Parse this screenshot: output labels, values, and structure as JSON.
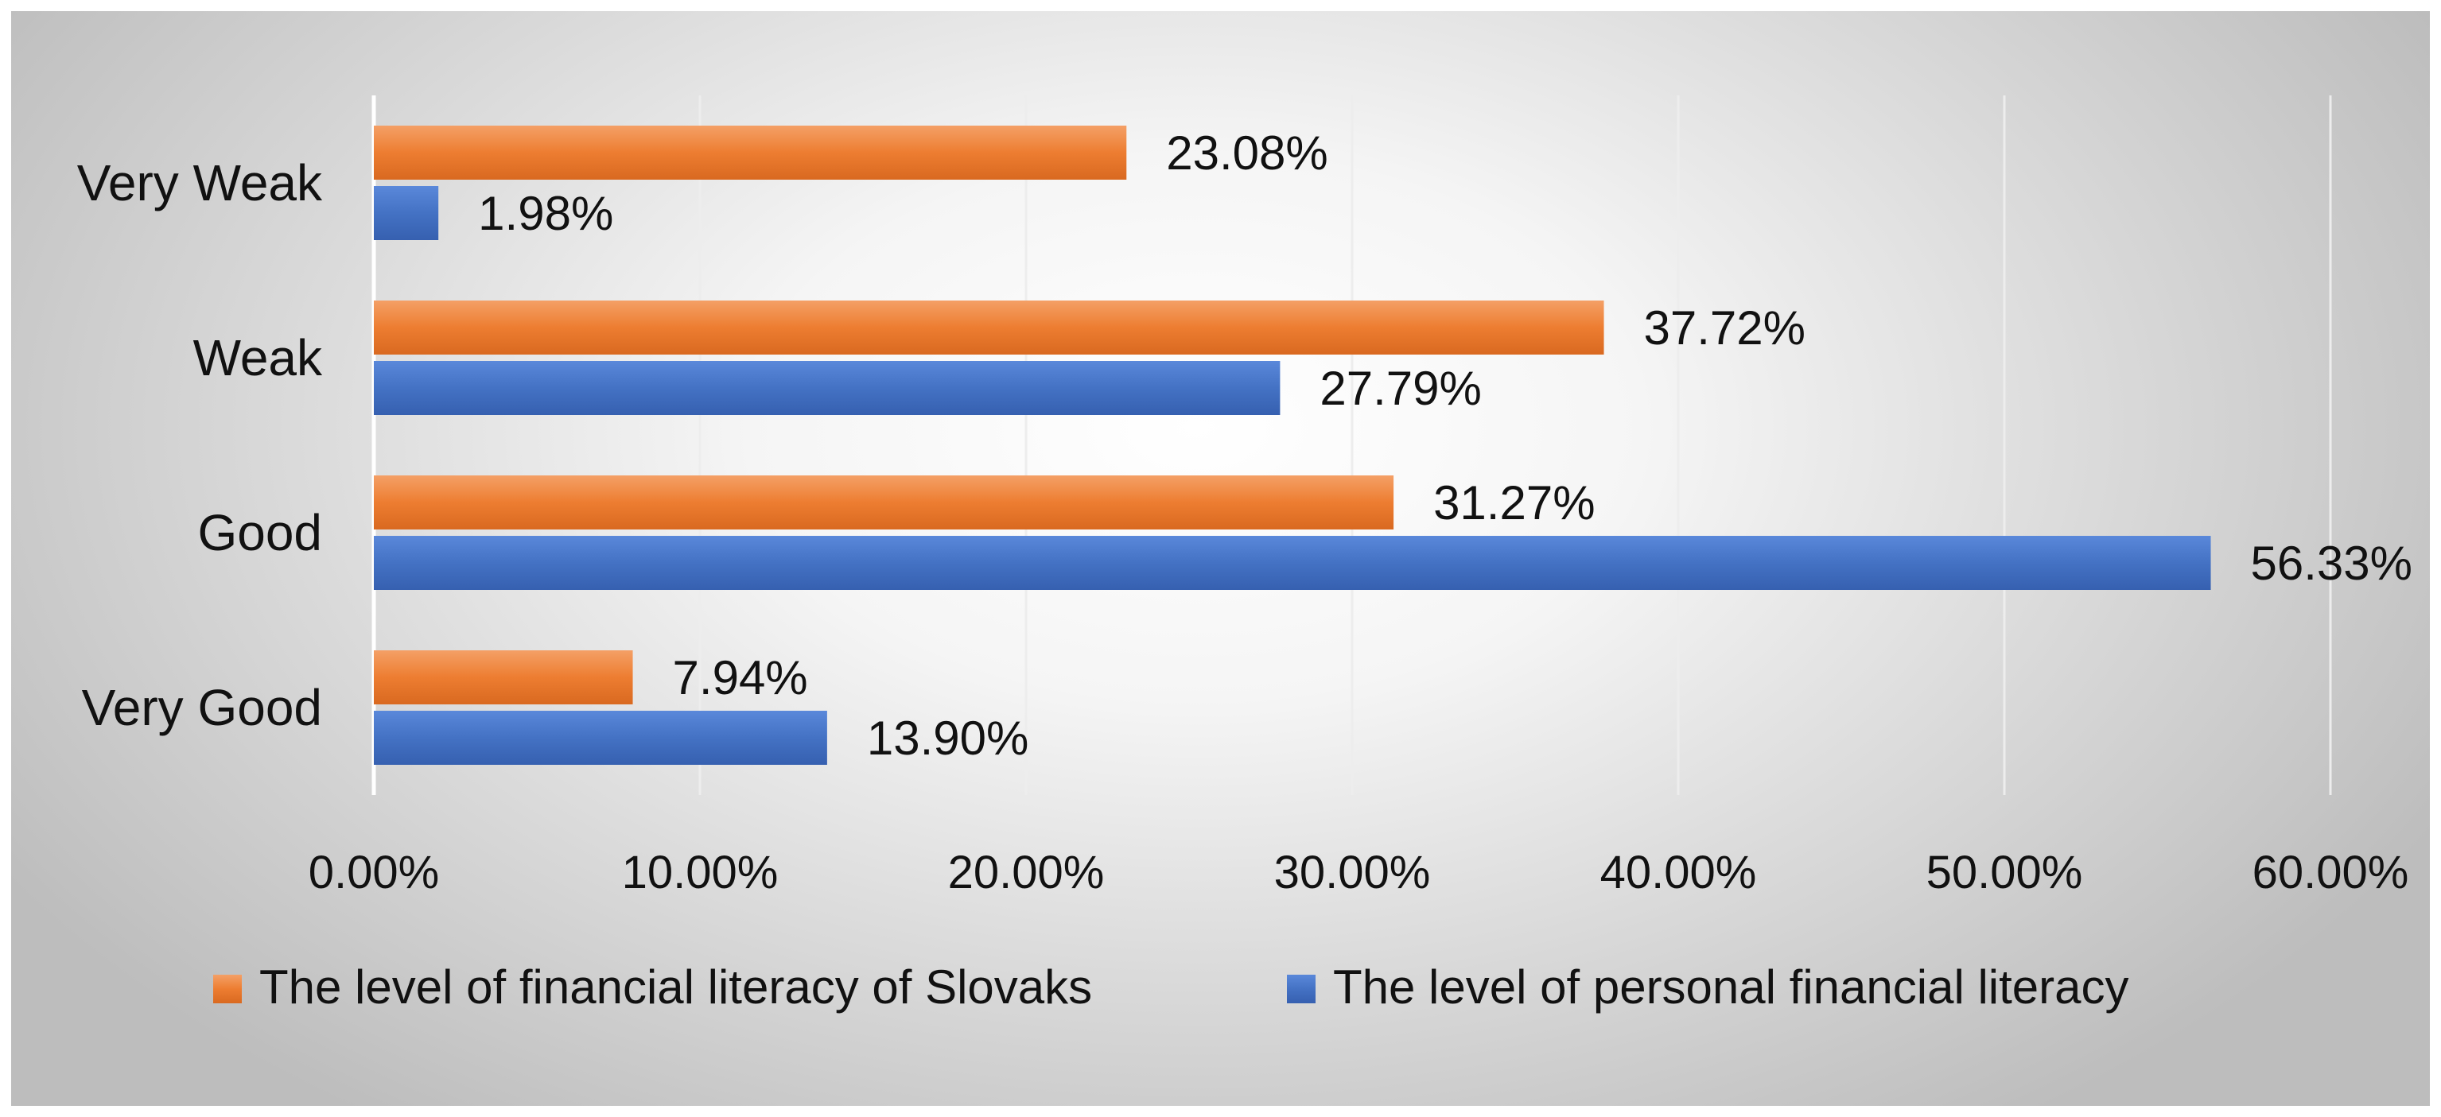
{
  "chart_data": {
    "type": "bar",
    "orientation": "horizontal",
    "categories": [
      "Very Weak",
      "Weak",
      "Good",
      "Very Good"
    ],
    "series": [
      {
        "name": "The level of financial literacy of Slovaks",
        "color": "#ed7d31",
        "values": [
          23.08,
          37.72,
          31.27,
          7.94
        ],
        "labels": [
          "23.08%",
          "37.72%",
          "31.27%",
          "7.94%"
        ]
      },
      {
        "name": "The level of personal financial literacy",
        "color": "#4472c4",
        "values": [
          1.98,
          27.79,
          56.33,
          13.9
        ],
        "labels": [
          "1.98%",
          "27.79%",
          "56.33%",
          "13.90%"
        ]
      }
    ],
    "x_ticks": [
      "0.00%",
      "10.00%",
      "20.00%",
      "30.00%",
      "40.00%",
      "50.00%",
      "60.00%"
    ],
    "xlim": [
      0,
      60
    ],
    "unit": "%",
    "grid": true,
    "legend_position": "bottom"
  }
}
